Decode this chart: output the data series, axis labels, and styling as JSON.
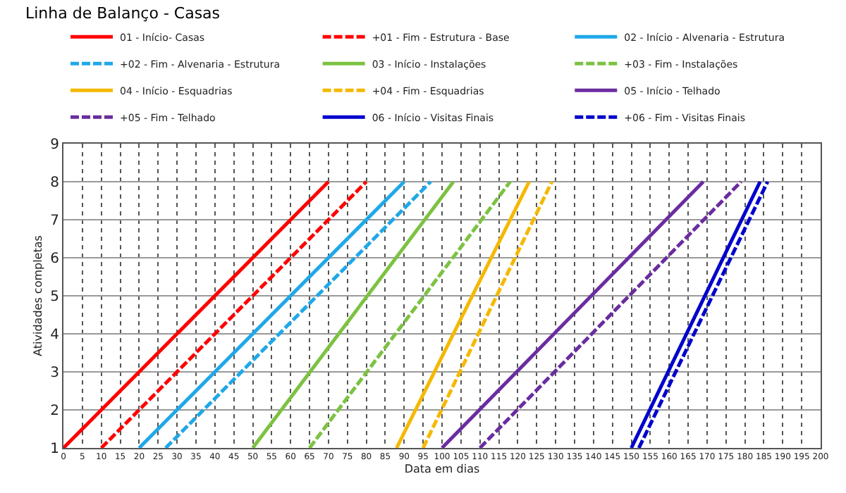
{
  "chart_data": {
    "type": "line",
    "title": "Linha de Balanço - Casas",
    "xlabel": "Data em dias",
    "ylabel": "Atividades completas",
    "xlim": [
      0,
      200
    ],
    "xticks": [
      0,
      5,
      10,
      15,
      20,
      25,
      30,
      35,
      40,
      45,
      50,
      55,
      60,
      65,
      70,
      75,
      80,
      85,
      90,
      95,
      100,
      105,
      110,
      115,
      120,
      125,
      130,
      135,
      140,
      145,
      150,
      155,
      160,
      165,
      170,
      175,
      180,
      185,
      190,
      195,
      200
    ],
    "ylim": [
      1,
      9
    ],
    "yticks": [
      1,
      2,
      3,
      4,
      5,
      6,
      7,
      8,
      9
    ],
    "grid": true,
    "legend": "top",
    "marker": "none",
    "series": [
      {
        "name": "01 - Início- Casas",
        "color": "#ff0000",
        "line_style": "solid",
        "x": [
          0,
          70
        ],
        "values": [
          1,
          8
        ]
      },
      {
        "name": "+01 - Fim - Estrutura - Base",
        "color": "#ff0000",
        "line_style": "dashed",
        "x": [
          10,
          80
        ],
        "values": [
          1,
          8
        ]
      },
      {
        "name": "02 - Início - Alvenaria - Estrutura",
        "color": "#1fa8e8",
        "line_style": "solid",
        "x": [
          20,
          90
        ],
        "values": [
          1,
          8
        ]
      },
      {
        "name": "+02 - Fim - Alvenaria - Estrutura",
        "color": "#1fa8e8",
        "line_style": "dashed",
        "x": [
          27,
          97
        ],
        "values": [
          1,
          8
        ]
      },
      {
        "name": "03 - Início - Instalações",
        "color": "#7cc242",
        "line_style": "solid",
        "x": [
          50,
          103
        ],
        "values": [
          1,
          8
        ]
      },
      {
        "name": "+03 - Fim - Instalações",
        "color": "#7cc242",
        "line_style": "dashed",
        "x": [
          65,
          118
        ],
        "values": [
          1,
          8
        ]
      },
      {
        "name": "04 - Início - Esquadrias",
        "color": "#f5b800",
        "line_style": "solid",
        "x": [
          88,
          123
        ],
        "values": [
          1,
          8
        ]
      },
      {
        "name": "+04 - Fim - Esquadrias",
        "color": "#f5b800",
        "line_style": "dashed",
        "x": [
          95,
          129
        ],
        "values": [
          1,
          8
        ]
      },
      {
        "name": "05 - Início - Telhado",
        "color": "#6a2ca0",
        "line_style": "solid",
        "x": [
          100,
          169
        ],
        "values": [
          1,
          8
        ]
      },
      {
        "name": "+05 - Fim - Telhado",
        "color": "#6a2ca0",
        "line_style": "dashed",
        "x": [
          110,
          179
        ],
        "values": [
          1,
          8
        ]
      },
      {
        "name": "06 - Início - Visitas Finais",
        "color": "#0000cc",
        "line_style": "solid",
        "x": [
          150,
          184
        ],
        "values": [
          1,
          8
        ]
      },
      {
        "name": "+06 - Fim - Visitas Finais",
        "color": "#0000cc",
        "line_style": "dashed",
        "x": [
          152,
          186
        ],
        "values": [
          1,
          8
        ]
      }
    ]
  }
}
